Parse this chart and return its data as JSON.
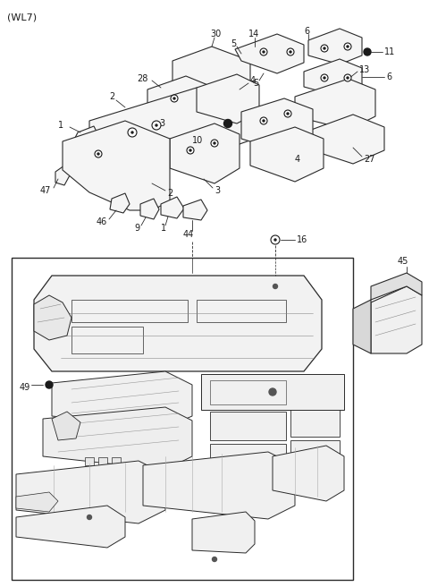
{
  "title": "(WL7)",
  "bg_color": "#ffffff",
  "line_color": "#2a2a2a",
  "label_color": "#1a1a1a",
  "fig_width": 4.8,
  "fig_height": 6.56,
  "dpi": 100
}
